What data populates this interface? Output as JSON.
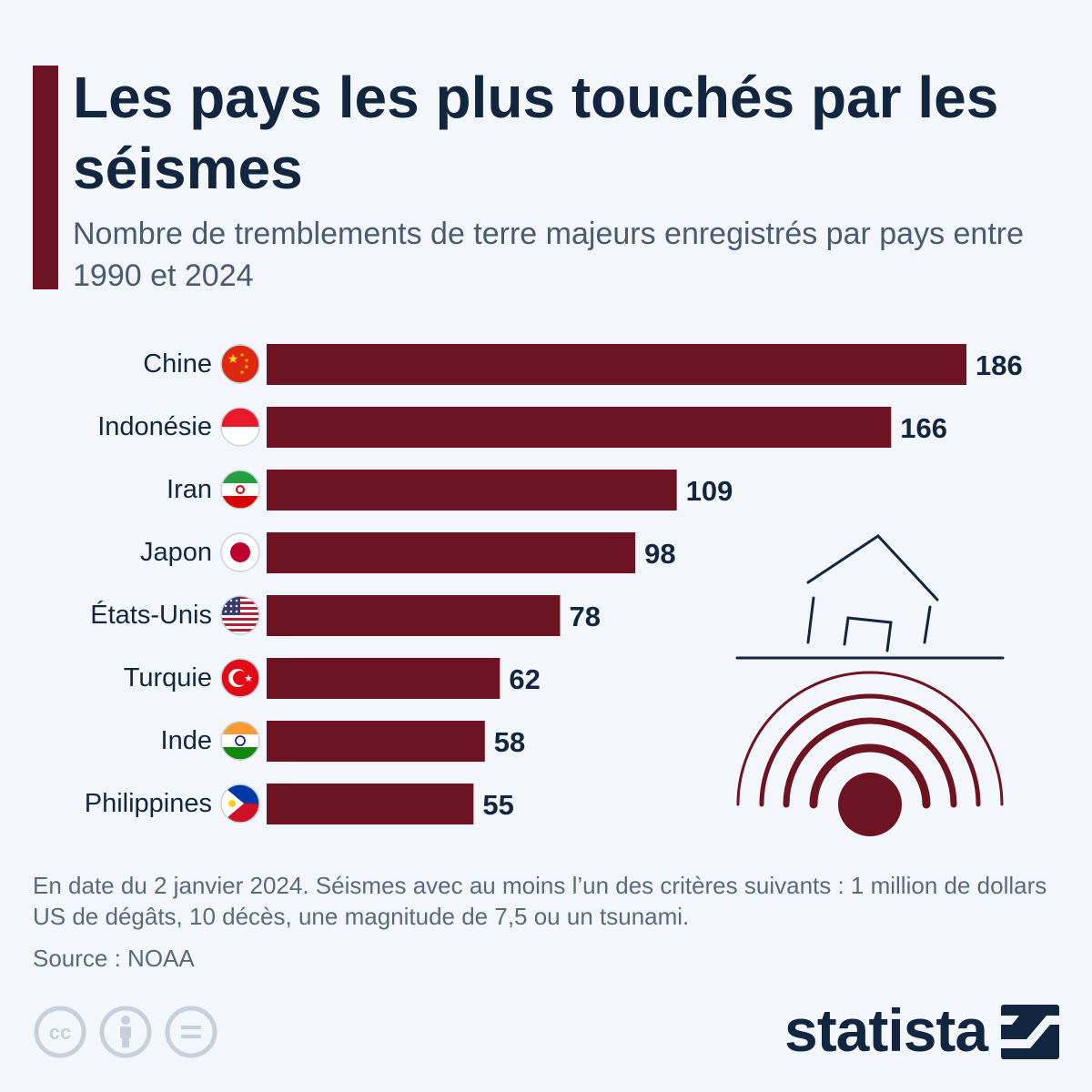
{
  "header": {
    "title": "Les pays les plus touchés par les séismes",
    "subtitle": "Nombre de tremblements de terre majeurs enregistrés par pays entre 1990 et 2024"
  },
  "chart_data": {
    "type": "bar",
    "orientation": "horizontal",
    "title": "Les pays les plus touchés par les séismes",
    "subtitle": "Nombre de tremblements de terre majeurs enregistrés par pays entre 1990 et 2024",
    "categories": [
      "Chine",
      "Indonésie",
      "Iran",
      "Japon",
      "États-Unis",
      "Turquie",
      "Inde",
      "Philippines"
    ],
    "values": [
      186,
      166,
      109,
      98,
      78,
      62,
      58,
      55
    ],
    "flag_icons": [
      "china-flag-icon",
      "indonesia-flag-icon",
      "iran-flag-icon",
      "japan-flag-icon",
      "usa-flag-icon",
      "turkey-flag-icon",
      "india-flag-icon",
      "philippines-flag-icon"
    ],
    "xlim": [
      0,
      186
    ],
    "grid": false,
    "data_labels": true,
    "bar_color": "#6d1321"
  },
  "illustration": {
    "icon": "earthquake-house-icon",
    "color_house": "#12263f",
    "color_waves": "#6d1321"
  },
  "footer": {
    "note": "En date du 2 janvier 2024. Séismes avec au moins l’un des critères suivants : 1 million de dollars US de dégâts, 10 décès, une magnitude de 7,5 ou un tsunami.",
    "source": "Source : NOAA",
    "license_icons": [
      "creative-commons-icon",
      "attribution-icon",
      "no-derivatives-icon"
    ],
    "brand": "statista",
    "brand_icon": "statista-logo-icon"
  },
  "colors": {
    "accent": "#6d1321",
    "title": "#12263f",
    "subtitle": "#4a5a70",
    "background": "#f3f7fb"
  }
}
